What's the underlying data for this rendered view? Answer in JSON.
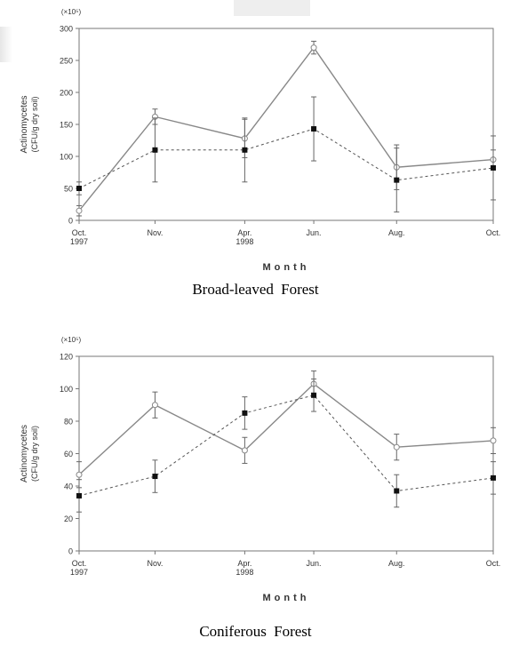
{
  "chart_data": [
    {
      "type": "line",
      "caption": "Broad-leaved  Forest",
      "multiplier_label": "(×10⁵)",
      "ylabel_line1": "Actinomycetes",
      "ylabel_line2": "(CFU/g dry soil)",
      "xlabel": "Month",
      "ylim": [
        0,
        300
      ],
      "yticks": [
        "0",
        "50",
        "100",
        "150",
        "200",
        "250",
        "300"
      ],
      "categories": [
        {
          "line1": "Oct.",
          "line2": "1997"
        },
        {
          "line1": "Nov.",
          "line2": ""
        },
        {
          "line1": "Apr.",
          "line2": "1998"
        },
        {
          "line1": "Jun.",
          "line2": ""
        },
        {
          "line1": "Aug.",
          "line2": ""
        },
        {
          "line1": "Oct.",
          "line2": ""
        }
      ],
      "x_positions": [
        0,
        1.1,
        2.4,
        3.4,
        4.6,
        6.0
      ],
      "series": [
        {
          "style": "solid-open-circle",
          "values": [
            15,
            162,
            128,
            270,
            83,
            95
          ],
          "errors": [
            8,
            12,
            30,
            10,
            35,
            15
          ]
        },
        {
          "style": "dashed-filled-square",
          "values": [
            50,
            110,
            110,
            143,
            63,
            82
          ],
          "errors": [
            10,
            50,
            50,
            50,
            50,
            50
          ]
        }
      ],
      "grid": false
    },
    {
      "type": "line",
      "caption": "Coniferous  Forest",
      "multiplier_label": "(×10⁵)",
      "ylabel_line1": "Actinomycetes",
      "ylabel_line2": "(CFU/g dry soil)",
      "xlabel": "Month",
      "ylim": [
        0,
        120
      ],
      "yticks": [
        "0",
        "20",
        "40",
        "60",
        "80",
        "100",
        "120"
      ],
      "categories": [
        {
          "line1": "Oct.",
          "line2": "1997"
        },
        {
          "line1": "Nov.",
          "line2": ""
        },
        {
          "line1": "Apr.",
          "line2": "1998"
        },
        {
          "line1": "Jun.",
          "line2": ""
        },
        {
          "line1": "Aug.",
          "line2": ""
        },
        {
          "line1": "Oct.",
          "line2": ""
        }
      ],
      "x_positions": [
        0,
        1.1,
        2.4,
        3.4,
        4.6,
        6.0
      ],
      "series": [
        {
          "style": "solid-open-circle",
          "values": [
            47,
            90,
            62,
            103,
            64,
            68
          ],
          "errors": [
            8,
            8,
            8,
            8,
            8,
            8
          ]
        },
        {
          "style": "dashed-filled-square",
          "values": [
            34,
            46,
            85,
            96,
            37,
            45
          ],
          "errors": [
            10,
            10,
            10,
            10,
            10,
            10
          ]
        }
      ],
      "grid": false
    }
  ]
}
